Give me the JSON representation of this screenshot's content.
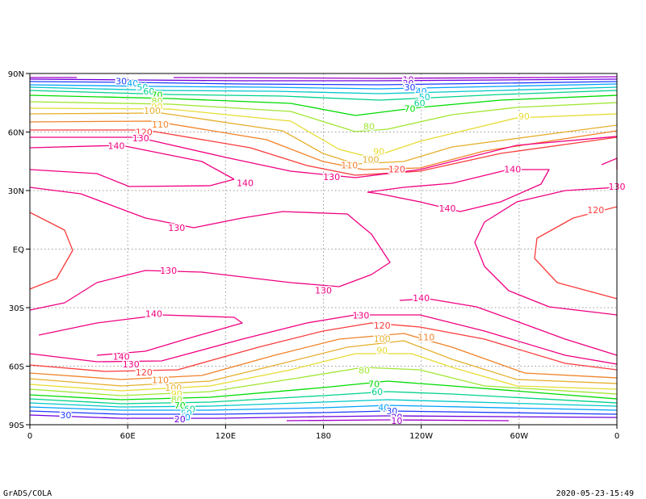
{
  "chart_data": {
    "type": "contour",
    "title": "",
    "x_ticks": [
      "0",
      "60E",
      "120E",
      "180",
      "120W",
      "60W",
      "0"
    ],
    "y_ticks": [
      "90N",
      "60N",
      "30N",
      "EQ",
      "30S",
      "60S",
      "90S"
    ],
    "xlim": [
      0,
      360
    ],
    "ylim": [
      -90,
      90
    ],
    "grid": "dotted",
    "contour_levels": [
      10,
      20,
      30,
      40,
      50,
      60,
      70,
      80,
      90,
      100,
      110,
      120,
      130,
      140
    ],
    "level_colors": {
      "10": "#a000c8",
      "20": "#6e00dc",
      "30": "#1e3cff",
      "40": "#00a0ff",
      "50": "#00c8c8",
      "60": "#00d28c",
      "70": "#00dc00",
      "80": "#a0e632",
      "90": "#e6dc32",
      "100": "#e6af2d",
      "110": "#f08228",
      "120": "#fa3c3c",
      "130": "#f00082",
      "140": "#f00082"
    },
    "contour_labels": [
      {
        "value": "30",
        "lon": 56,
        "lat": 86
      },
      {
        "value": "40",
        "lon": 63,
        "lat": 85
      },
      {
        "value": "50",
        "lon": 69,
        "lat": 83
      },
      {
        "value": "60",
        "lon": 73,
        "lat": 81
      },
      {
        "value": "70",
        "lon": 78,
        "lat": 79
      },
      {
        "value": "80",
        "lon": 78,
        "lat": 76
      },
      {
        "value": "90",
        "lon": 78,
        "lat": 73
      },
      {
        "value": "100",
        "lon": 75,
        "lat": 71
      },
      {
        "value": "110",
        "lon": 80,
        "lat": 64
      },
      {
        "value": "120",
        "lon": 70,
        "lat": 60
      },
      {
        "value": "130",
        "lon": 68,
        "lat": 57
      },
      {
        "value": "140",
        "lon": 53,
        "lat": 53
      },
      {
        "value": "10",
        "lon": 232,
        "lat": 87
      },
      {
        "value": "20",
        "lon": 232,
        "lat": 85
      },
      {
        "value": "30",
        "lon": 233,
        "lat": 83
      },
      {
        "value": "40",
        "lon": 240,
        "lat": 81
      },
      {
        "value": "50",
        "lon": 242,
        "lat": 78
      },
      {
        "value": "60",
        "lon": 239,
        "lat": 75
      },
      {
        "value": "70",
        "lon": 233,
        "lat": 72
      },
      {
        "value": "80",
        "lon": 208,
        "lat": 63
      },
      {
        "value": "90",
        "lon": 214,
        "lat": 50
      },
      {
        "value": "100",
        "lon": 209,
        "lat": 46
      },
      {
        "value": "110",
        "lon": 196,
        "lat": 43
      },
      {
        "value": "120",
        "lon": 225,
        "lat": 41
      },
      {
        "value": "130",
        "lon": 185,
        "lat": 37
      },
      {
        "value": "140",
        "lon": 296,
        "lat": 41
      },
      {
        "value": "90",
        "lon": 303,
        "lat": 68
      },
      {
        "value": "140",
        "lon": 132,
        "lat": 34
      },
      {
        "value": "130",
        "lon": 360,
        "lat": 32
      },
      {
        "value": "140",
        "lon": 256,
        "lat": 21
      },
      {
        "value": "120",
        "lon": 347,
        "lat": 20
      },
      {
        "value": "130",
        "lon": 90,
        "lat": 11
      },
      {
        "value": "130",
        "lon": 85,
        "lat": -11
      },
      {
        "value": "130",
        "lon": 180,
        "lat": -21
      },
      {
        "value": "140",
        "lon": 240,
        "lat": -25
      },
      {
        "value": "140",
        "lon": 76,
        "lat": -33
      },
      {
        "value": "130",
        "lon": 203,
        "lat": -34
      },
      {
        "value": "120",
        "lon": 216,
        "lat": -39
      },
      {
        "value": "110",
        "lon": 243,
        "lat": -45
      },
      {
        "value": "100",
        "lon": 216,
        "lat": -46
      },
      {
        "value": "90",
        "lon": 216,
        "lat": -52
      },
      {
        "value": "140",
        "lon": 56,
        "lat": -55
      },
      {
        "value": "130",
        "lon": 62,
        "lat": -59
      },
      {
        "value": "120",
        "lon": 70,
        "lat": -63
      },
      {
        "value": "110",
        "lon": 80,
        "lat": -67
      },
      {
        "value": "100",
        "lon": 88,
        "lat": -71
      },
      {
        "value": "90",
        "lon": 90,
        "lat": -74
      },
      {
        "value": "80",
        "lon": 90,
        "lat": -77
      },
      {
        "value": "70",
        "lon": 92,
        "lat": -80
      },
      {
        "value": "60",
        "lon": 98,
        "lat": -82
      },
      {
        "value": "50",
        "lon": 96,
        "lat": -84
      },
      {
        "value": "40",
        "lon": 95,
        "lat": -86
      },
      {
        "value": "30",
        "lon": 22,
        "lat": -85
      },
      {
        "value": "20",
        "lon": 92,
        "lat": -87
      },
      {
        "value": "80",
        "lon": 205,
        "lat": -62
      },
      {
        "value": "70",
        "lon": 211,
        "lat": -69
      },
      {
        "value": "60",
        "lon": 213,
        "lat": -73
      },
      {
        "value": "40",
        "lon": 217,
        "lat": -81
      },
      {
        "value": "30",
        "lon": 222,
        "lat": -83
      },
      {
        "value": "20",
        "lon": 225,
        "lat": -86
      },
      {
        "value": "10",
        "lon": 225,
        "lat": -88
      }
    ]
  },
  "footer": {
    "left": "GrADS/COLA",
    "right": "2020-05-23-15:49"
  }
}
